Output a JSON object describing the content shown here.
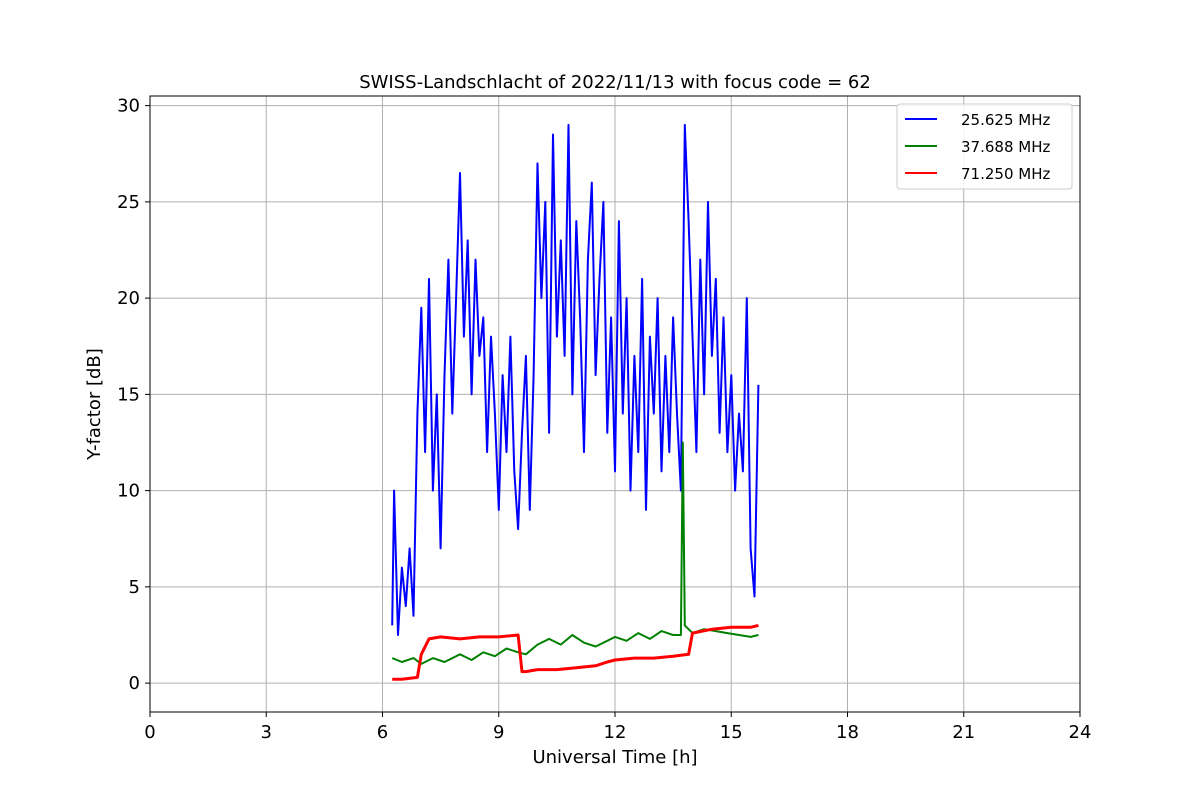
{
  "chart_data": {
    "type": "line",
    "title": "SWISS-Landschlacht of 2022/11/13 with focus code = 62",
    "xlabel": "Universal Time [h]",
    "ylabel": "Y-factor [dB]",
    "xlim": [
      0,
      24
    ],
    "ylim": [
      -1.5,
      30.5
    ],
    "xticks": [
      0,
      3,
      6,
      9,
      12,
      15,
      18,
      21,
      24
    ],
    "yticks": [
      0,
      5,
      10,
      15,
      20,
      25,
      30
    ],
    "xtick_labels": [
      "0",
      "3",
      "6",
      "9",
      "12",
      "15",
      "18",
      "21",
      "24"
    ],
    "ytick_labels": [
      "0",
      "5",
      "10",
      "15",
      "20",
      "25",
      "30"
    ],
    "grid": true,
    "legend_position": "top-right",
    "series": [
      {
        "name": "25.625 MHz",
        "color": "#0000ff",
        "x": [
          6.25,
          6.3,
          6.4,
          6.5,
          6.6,
          6.7,
          6.8,
          6.9,
          7.0,
          7.1,
          7.2,
          7.3,
          7.4,
          7.5,
          7.6,
          7.7,
          7.8,
          7.9,
          8.0,
          8.1,
          8.2,
          8.3,
          8.4,
          8.5,
          8.6,
          8.7,
          8.8,
          8.9,
          9.0,
          9.1,
          9.2,
          9.3,
          9.4,
          9.5,
          9.6,
          9.7,
          9.8,
          9.9,
          10.0,
          10.1,
          10.2,
          10.3,
          10.4,
          10.5,
          10.6,
          10.7,
          10.8,
          10.9,
          11.0,
          11.1,
          11.2,
          11.3,
          11.4,
          11.5,
          11.6,
          11.7,
          11.8,
          11.9,
          12.0,
          12.1,
          12.2,
          12.3,
          12.4,
          12.5,
          12.6,
          12.7,
          12.8,
          12.9,
          13.0,
          13.1,
          13.2,
          13.3,
          13.4,
          13.5,
          13.6,
          13.7,
          13.8,
          13.9,
          14.0,
          14.1,
          14.2,
          14.3,
          14.4,
          14.5,
          14.6,
          14.7,
          14.8,
          14.9,
          15.0,
          15.1,
          15.2,
          15.3,
          15.4,
          15.5,
          15.6,
          15.7
        ],
        "values": [
          3.0,
          10.0,
          2.5,
          6.0,
          4.0,
          7.0,
          3.5,
          14.0,
          19.5,
          12.0,
          21.0,
          10.0,
          15.0,
          7.0,
          16.0,
          22.0,
          14.0,
          20.0,
          26.5,
          18.0,
          23.0,
          15.0,
          22.0,
          17.0,
          19.0,
          12.0,
          18.0,
          14.0,
          9.0,
          16.0,
          12.0,
          18.0,
          11.0,
          8.0,
          13.0,
          17.0,
          9.0,
          16.0,
          27.0,
          20.0,
          25.0,
          13.0,
          28.5,
          18.0,
          23.0,
          17.0,
          29.0,
          15.0,
          24.0,
          19.0,
          12.0,
          22.0,
          26.0,
          16.0,
          21.0,
          25.0,
          13.0,
          19.0,
          11.0,
          24.0,
          14.0,
          20.0,
          10.0,
          17.0,
          12.0,
          21.0,
          9.0,
          18.0,
          14.0,
          20.0,
          11.0,
          17.0,
          12.0,
          19.0,
          14.0,
          10.0,
          29.0,
          24.0,
          18.0,
          12.0,
          22.0,
          15.0,
          25.0,
          17.0,
          21.0,
          13.0,
          19.0,
          12.0,
          16.0,
          10.0,
          14.0,
          11.0,
          20.0,
          7.0,
          4.5,
          15.5
        ]
      },
      {
        "name": "37.688 MHz",
        "color": "#008000",
        "x": [
          6.25,
          6.5,
          6.8,
          7.0,
          7.3,
          7.6,
          8.0,
          8.3,
          8.6,
          8.9,
          9.2,
          9.5,
          9.7,
          10.0,
          10.3,
          10.6,
          10.9,
          11.2,
          11.5,
          11.8,
          12.0,
          12.3,
          12.6,
          12.9,
          13.2,
          13.5,
          13.7,
          13.75,
          13.8,
          14.0,
          14.3,
          14.6,
          14.9,
          15.2,
          15.5,
          15.7
        ],
        "values": [
          1.3,
          1.1,
          1.3,
          1.0,
          1.3,
          1.1,
          1.5,
          1.2,
          1.6,
          1.4,
          1.8,
          1.6,
          1.5,
          2.0,
          2.3,
          2.0,
          2.5,
          2.1,
          1.9,
          2.2,
          2.4,
          2.2,
          2.6,
          2.3,
          2.7,
          2.5,
          2.5,
          12.5,
          3.0,
          2.6,
          2.8,
          2.7,
          2.6,
          2.5,
          2.4,
          2.5
        ]
      },
      {
        "name": "71.250 MHz",
        "color": "#ff0000",
        "x": [
          6.25,
          6.5,
          6.9,
          7.0,
          7.2,
          7.5,
          8.0,
          8.5,
          9.0,
          9.5,
          9.6,
          9.7,
          10.0,
          10.5,
          11.0,
          11.5,
          11.8,
          12.0,
          12.5,
          13.0,
          13.5,
          13.9,
          14.0,
          14.5,
          15.0,
          15.5,
          15.7
        ],
        "values": [
          0.2,
          0.2,
          0.3,
          1.5,
          2.3,
          2.4,
          2.3,
          2.4,
          2.4,
          2.5,
          0.6,
          0.6,
          0.7,
          0.7,
          0.8,
          0.9,
          1.1,
          1.2,
          1.3,
          1.3,
          1.4,
          1.5,
          2.6,
          2.8,
          2.9,
          2.9,
          3.0
        ]
      }
    ]
  }
}
